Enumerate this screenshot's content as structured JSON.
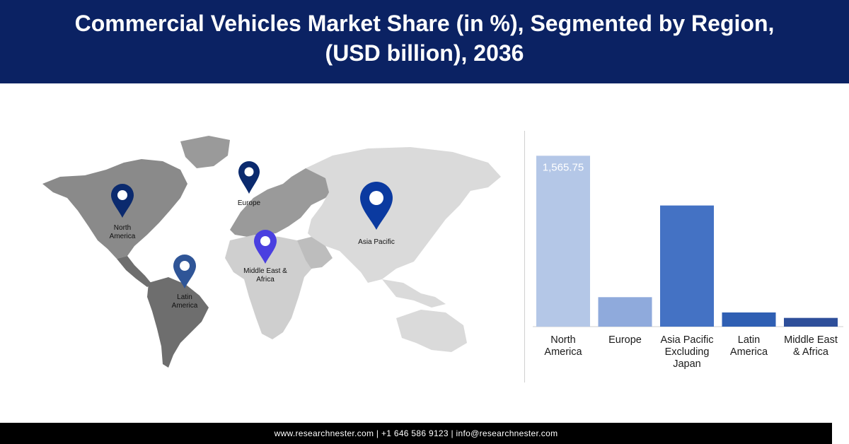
{
  "header": {
    "title_line1": "Commercial Vehicles Market Share (in %), Segmented by Region,",
    "title_line2": "(USD billion), 2036"
  },
  "map": {
    "pins": [
      {
        "label_lines": [
          "North",
          "America"
        ],
        "color": "#0b2a6e"
      },
      {
        "label_lines": [
          "Europe"
        ],
        "color": "#0b2a6e"
      },
      {
        "label_lines": [
          "Asia Pacific"
        ],
        "color": "#0b3aa0"
      },
      {
        "label_lines": [
          "Middle East &",
          "Africa"
        ],
        "color": "#4a3fe0"
      },
      {
        "label_lines": [
          "Latin",
          "America"
        ],
        "color": "#2f5597"
      }
    ]
  },
  "chart_data": {
    "type": "bar",
    "categories": [
      "North America",
      "Europe",
      "Asia Pacific Excluding Japan",
      "Latin America",
      "Middle East & Africa"
    ],
    "category_label_lines": [
      [
        "North",
        "America"
      ],
      [
        "Europe"
      ],
      [
        "Asia Pacific",
        "Excluding",
        "Japan"
      ],
      [
        "Latin",
        "America"
      ],
      [
        "Middle East",
        "& Africa"
      ]
    ],
    "values": [
      1565.75,
      270,
      1110,
      130,
      80
    ],
    "data_labels": [
      "1,565.75",
      "",
      "",
      "",
      ""
    ],
    "colors": [
      "#b4c7e7",
      "#8faadc",
      "#4472c4",
      "#2f5fb3",
      "#2e4f9a"
    ],
    "ylim": [
      0,
      1600
    ],
    "grid": false
  },
  "footer": {
    "text": "www.researchnester.com | +1 646 586 9123 | info@researchnester.com"
  }
}
